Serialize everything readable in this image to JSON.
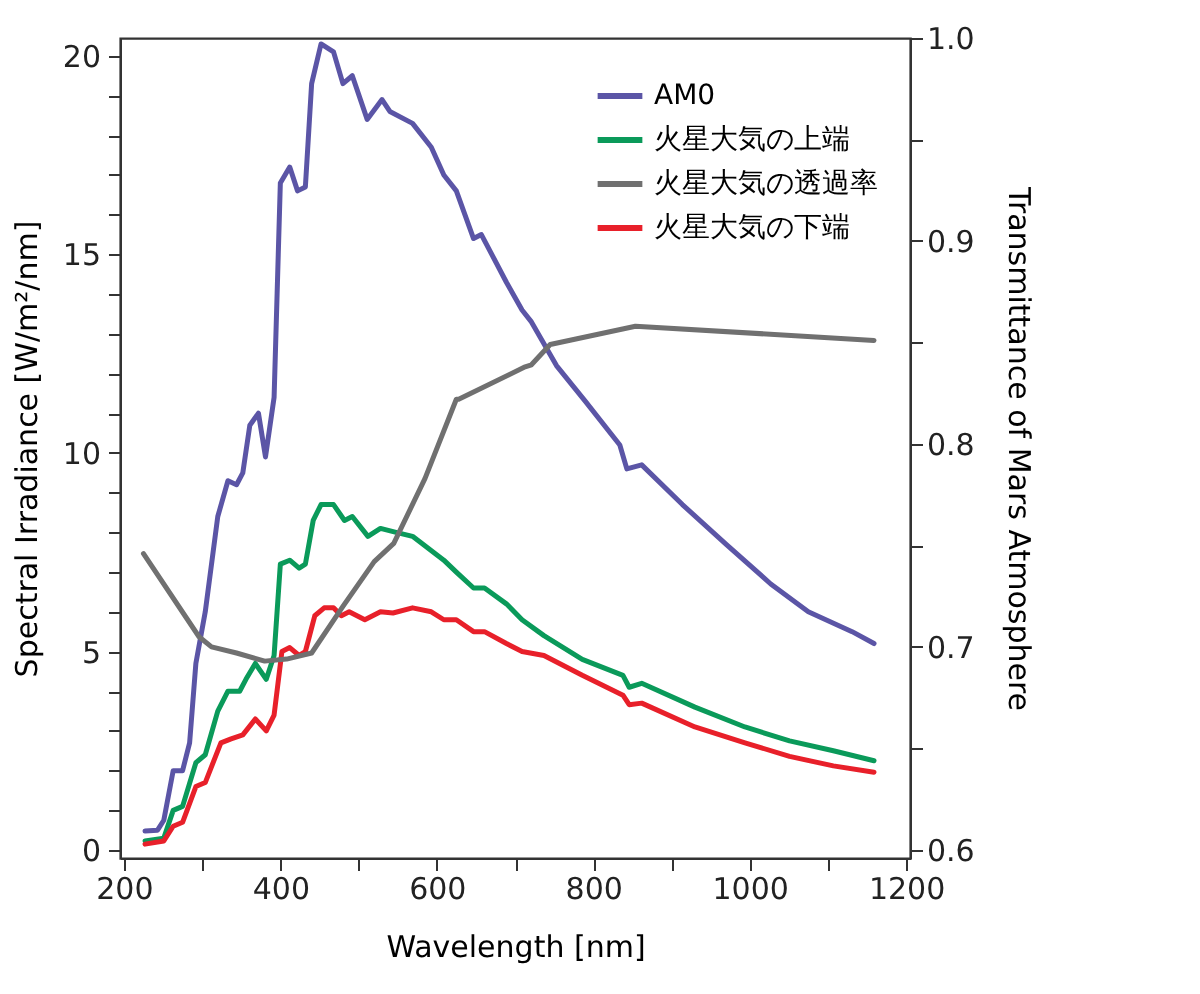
{
  "chart_data": {
    "type": "line",
    "xlabel": "Wavelength [nm]",
    "ylabel": "Spectral Irradiance [W/m²/nm]",
    "y2label": "Transmittance of Mars Atmosphere",
    "xlim": [
      195,
      1205
    ],
    "ylim": [
      -0.2,
      20.45
    ],
    "y2lim": [
      0.596,
      1.0
    ],
    "xticks": [
      200,
      {
        "value": 300,
        "label": null
      },
      400,
      {
        "value": 500,
        "label": null
      },
      600,
      {
        "value": 700,
        "label": null
      },
      800,
      {
        "value": 900,
        "label": null
      },
      1000,
      {
        "value": 1100,
        "label": null
      },
      1200
    ],
    "yticks": [
      0,
      {
        "value": 1,
        "label": null
      },
      {
        "value": 2,
        "label": null
      },
      {
        "value": 3,
        "label": null
      },
      {
        "value": 4,
        "label": null
      },
      5,
      {
        "value": 6,
        "label": null
      },
      {
        "value": 7,
        "label": null
      },
      {
        "value": 8,
        "label": null
      },
      {
        "value": 9,
        "label": null
      },
      10,
      {
        "value": 11,
        "label": null
      },
      {
        "value": 12,
        "label": null
      },
      {
        "value": 13,
        "label": null
      },
      {
        "value": 14,
        "label": null
      },
      15,
      {
        "value": 16,
        "label": null
      },
      {
        "value": 17,
        "label": null
      },
      {
        "value": 18,
        "label": null
      },
      {
        "value": 19,
        "label": null
      },
      20
    ],
    "y2ticks": [
      {
        "value": 0.6,
        "label": "0.6"
      },
      {
        "value": 0.65,
        "label": null
      },
      {
        "value": 0.7,
        "label": "0.7"
      },
      {
        "value": 0.75,
        "label": null
      },
      {
        "value": 0.8,
        "label": "0.8"
      },
      {
        "value": 0.85,
        "label": null
      },
      {
        "value": 0.9,
        "label": "0.9"
      },
      {
        "value": 0.95,
        "label": null
      },
      {
        "value": 1.0,
        "label": "1.0"
      }
    ],
    "legend": "top right",
    "grid": false,
    "marker": "none",
    "line_style": "solid",
    "series": [
      {
        "name": "AM0",
        "color": "#5b55a6",
        "x": [
          227,
          243,
          251,
          263,
          275,
          284,
          292,
          304,
          320,
          333,
          344,
          352,
          361,
          372,
          381,
          392,
          400,
          412,
          422,
          432,
          440,
          452,
          468,
          480,
          492,
          511,
          530,
          540,
          569,
          593,
          609,
          625,
          647,
          657,
          689,
          709,
          721,
          753,
          790,
          834,
          843,
          862,
          914,
          970,
          1027,
          1075,
          1131,
          1159
        ],
        "values": [
          0.48,
          0.5,
          0.75,
          2.0,
          2.0,
          2.7,
          4.7,
          6.0,
          8.4,
          9.3,
          9.2,
          9.5,
          10.7,
          11.0,
          9.9,
          11.4,
          16.8,
          17.2,
          16.6,
          16.7,
          19.3,
          20.3,
          20.1,
          19.3,
          19.5,
          18.4,
          18.9,
          18.6,
          18.3,
          17.7,
          17.0,
          16.6,
          15.4,
          15.5,
          14.3,
          13.6,
          13.3,
          12.2,
          11.3,
          10.2,
          9.6,
          9.7,
          8.7,
          7.7,
          6.7,
          6.0,
          5.5,
          5.2
        ]
      },
      {
        "name": "火星大気の上端",
        "color": "#0a9a5a",
        "x": [
          227,
          251,
          263,
          275,
          292,
          304,
          320,
          333,
          348,
          356,
          368,
          382,
          392,
          400,
          412,
          424,
          432,
          442,
          452,
          468,
          482,
          492,
          512,
          528,
          548,
          569,
          589,
          609,
          625,
          647,
          661,
          689,
          709,
          737,
          786,
          838,
          846,
          862,
          930,
          994,
          1051,
          1107,
          1159
        ],
        "values": [
          0.23,
          0.3,
          1.0,
          1.1,
          2.2,
          2.4,
          3.5,
          4.0,
          4.0,
          4.3,
          4.7,
          4.3,
          4.9,
          7.2,
          7.3,
          7.1,
          7.2,
          8.3,
          8.7,
          8.7,
          8.3,
          8.4,
          7.9,
          8.1,
          8.0,
          7.9,
          7.6,
          7.3,
          7.0,
          6.6,
          6.6,
          6.2,
          5.8,
          5.4,
          4.8,
          4.4,
          4.1,
          4.2,
          3.6,
          3.1,
          2.75,
          2.5,
          2.25
        ]
      },
      {
        "name": "火星大気の透過率",
        "color": "#707070",
        "axis": "y2",
        "x": [
          225,
          296,
          312,
          344,
          380,
          408,
          440,
          480,
          520,
          545,
          585,
          625,
          628,
          713,
          721,
          745,
          854,
          1159
        ],
        "values": [
          0.746,
          0.705,
          0.7,
          0.697,
          0.693,
          0.694,
          0.697,
          0.72,
          0.742,
          0.751,
          0.783,
          0.822,
          0.822,
          0.838,
          0.839,
          0.849,
          0.858,
          0.851
        ]
      },
      {
        "name": "火星大気の下端",
        "color": "#e8202a",
        "x": [
          227,
          251,
          263,
          275,
          292,
          304,
          324,
          337,
          352,
          368,
          382,
          392,
          402,
          412,
          424,
          432,
          444,
          456,
          468,
          478,
          488,
          508,
          528,
          544,
          569,
          593,
          609,
          625,
          647,
          661,
          689,
          709,
          737,
          786,
          838,
          846,
          862,
          930,
          994,
          1051,
          1107,
          1159
        ],
        "values": [
          0.15,
          0.23,
          0.6,
          0.7,
          1.6,
          1.7,
          2.7,
          2.8,
          2.9,
          3.3,
          3.0,
          3.4,
          5.0,
          5.1,
          4.9,
          5.0,
          5.9,
          6.1,
          6.1,
          5.9,
          6.0,
          5.8,
          6.0,
          5.97,
          6.1,
          6.0,
          5.8,
          5.8,
          5.5,
          5.5,
          5.2,
          5.0,
          4.9,
          4.4,
          3.9,
          3.66,
          3.7,
          3.1,
          2.7,
          2.36,
          2.12,
          1.96
        ]
      }
    ]
  }
}
